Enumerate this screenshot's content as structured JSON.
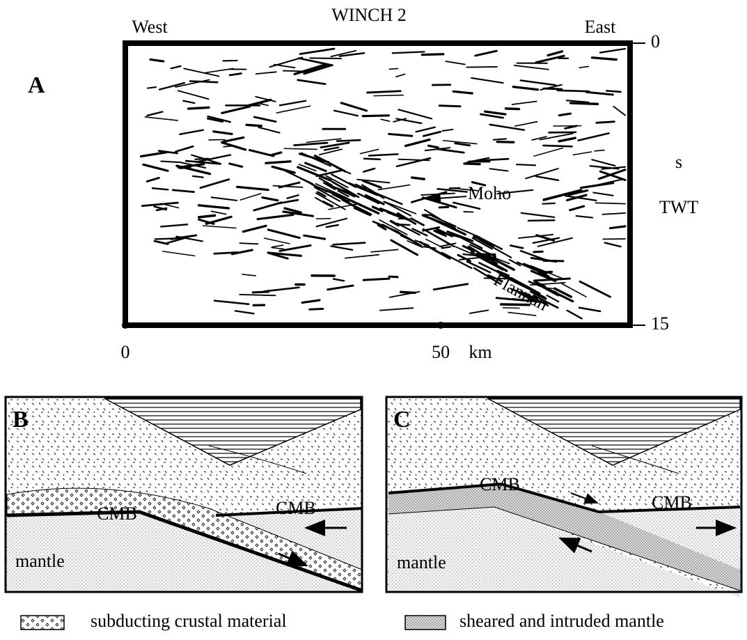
{
  "panel_a": {
    "label": "A",
    "title": "WINCH 2",
    "west": "West",
    "east": "East",
    "time_axis": {
      "ylim": [
        0,
        15
      ],
      "ticks": [
        0,
        15
      ],
      "unit": "s",
      "label": "TWT"
    },
    "distance_axis": {
      "xlim": [
        0,
        80
      ],
      "ticks": [
        0,
        50
      ],
      "unit": "km"
    },
    "annotations": {
      "moho": "Moho",
      "flannan": "Flannan"
    }
  },
  "panel_b": {
    "label": "B",
    "cmb": [
      "CMB",
      "CMB"
    ],
    "mantle": "mantle"
  },
  "panel_c": {
    "label": "C",
    "cmb": [
      "CMB",
      "CMB"
    ],
    "mantle": "mantle"
  },
  "legend": [
    "subducting crustal material",
    "sheared and intruded mantle"
  ]
}
